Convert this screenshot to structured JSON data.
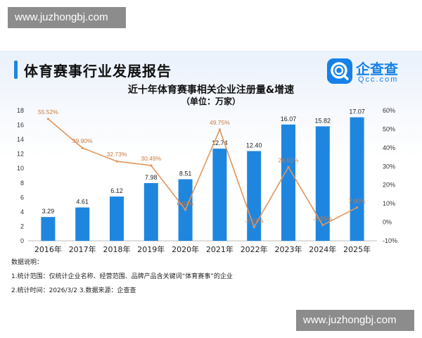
{
  "watermark": {
    "top_text": "www.juzhongbj.com",
    "bottom_text": "www.juzhongbj.com"
  },
  "header": {
    "report_title": "体育赛事行业发展报告"
  },
  "brand": {
    "name": "企查查",
    "sub": "Qcc.com",
    "color": "#1681e8"
  },
  "notes": {
    "heading": "数据说明：",
    "line1": "1.统计范围：仅统计企业名称、经营范围、品牌产品含关键词“体育赛事”的企业",
    "line2": "2.统计时间：2026/3/2  3.数据来源：企查查"
  },
  "colors": {
    "bar": "#1f86e0",
    "line": "#e2955a",
    "growth_label": "#c9793f",
    "axis_text": "#333333"
  },
  "chart_data": {
    "type": "bar",
    "title": "近十年体育赛事相关企业注册量&增速",
    "subtitle": "（单位：万家）",
    "categories": [
      "2016年",
      "2017年",
      "2018年",
      "2019年",
      "2020年",
      "2021年",
      "2022年",
      "2023年",
      "2024年",
      "2025年"
    ],
    "series": [
      {
        "type": "bar",
        "values": [
          3.29,
          4.61,
          6.12,
          7.98,
          8.51,
          12.74,
          12.4,
          16.07,
          15.82,
          17.07
        ]
      },
      {
        "type": "line",
        "axis": "right",
        "values": [
          55.52,
          39.9,
          32.73,
          30.49,
          6.67,
          49.75,
          -2.67,
          29.61,
          -1.55,
          7.9
        ]
      }
    ],
    "value_labels": [
      "3.29",
      "4.61",
      "6.12",
      "7.98",
      "8.51",
      "12.74",
      "12.40",
      "16.07",
      "15.82",
      "17.07"
    ],
    "growth_labels": [
      "55.52%",
      "39.90%",
      "32.73%",
      "30.49%",
      "6.67%",
      "49.75%",
      "-2.67%",
      "29.61%",
      "-1.55%",
      "7.90%"
    ],
    "ylim": [
      0,
      18
    ],
    "yticks": [
      "0",
      "2",
      "4",
      "6",
      "8",
      "10",
      "12",
      "14",
      "16",
      "18"
    ],
    "y2lim": [
      -10,
      60
    ],
    "y2ticks": [
      "-10%",
      "0%",
      "10%",
      "20%",
      "30%",
      "40%",
      "50%",
      "60%"
    ],
    "grid": false,
    "legend": "none"
  }
}
